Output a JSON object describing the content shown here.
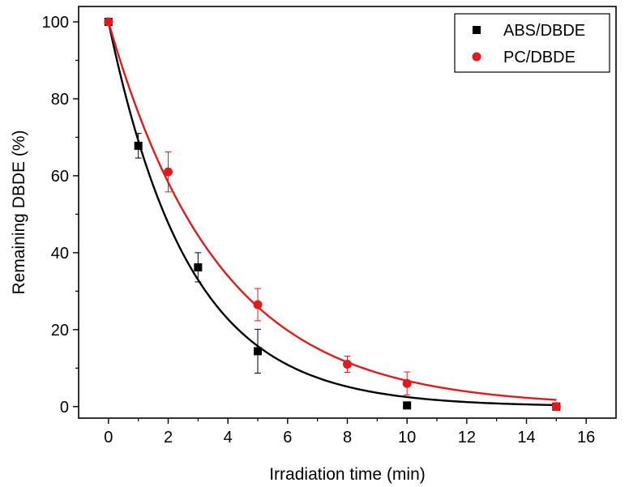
{
  "chart_data": {
    "type": "scatter",
    "title": "",
    "xlabel": "Irradiation time (min)",
    "ylabel": "Remaining DBDE (%)",
    "xlim": [
      -1,
      17
    ],
    "ylim": [
      -3,
      104
    ],
    "xticks": [
      0,
      2,
      4,
      6,
      8,
      10,
      12,
      14,
      16
    ],
    "yticks": [
      0,
      20,
      40,
      60,
      80,
      100
    ],
    "grid": false,
    "legend_position": "top-right",
    "series": [
      {
        "name": "ABS/DBDE",
        "color": "#000000",
        "marker": "square",
        "x": [
          0,
          1,
          3,
          5,
          10,
          15
        ],
        "y": [
          100,
          67.8,
          36.2,
          14.4,
          0.3,
          0
        ],
        "error": [
          0,
          3.2,
          3.8,
          5.7,
          0.4,
          0.2
        ],
        "fit": {
          "type": "exponential",
          "amplitude": 100,
          "rate": 0.37
        }
      },
      {
        "name": "PC/DBDE",
        "color": "#e11b1b",
        "marker": "circle",
        "x": [
          0,
          2,
          5,
          8,
          10,
          15
        ],
        "y": [
          100,
          61,
          26.5,
          11,
          6,
          0
        ],
        "error": [
          0,
          5.2,
          4.2,
          2.1,
          3.0,
          0.3
        ],
        "fit": {
          "type": "exponential",
          "amplitude": 100,
          "rate": 0.27
        }
      }
    ]
  }
}
